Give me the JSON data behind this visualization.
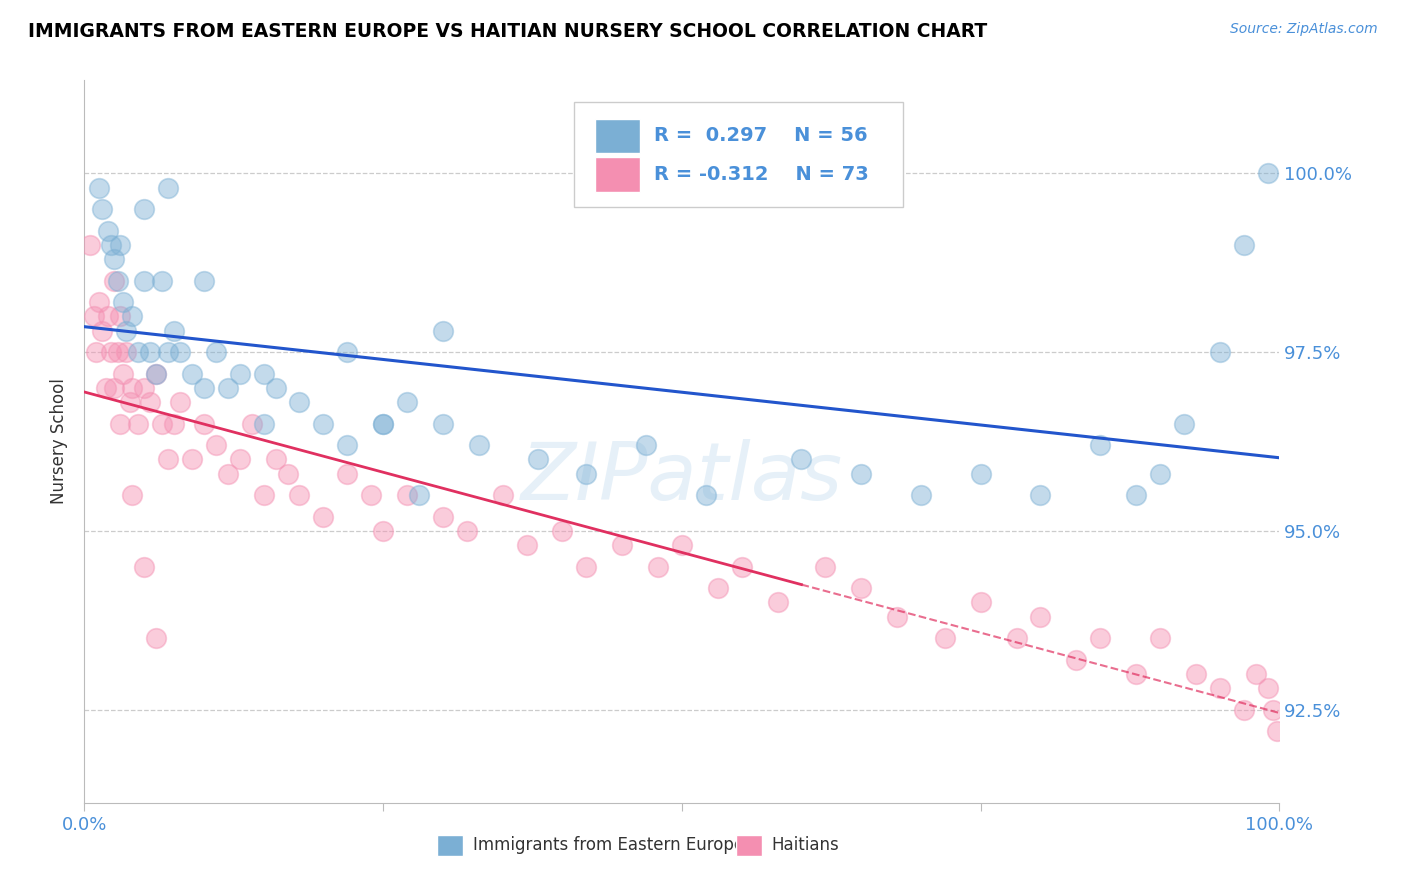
{
  "title": "IMMIGRANTS FROM EASTERN EUROPE VS HAITIAN NURSERY SCHOOL CORRELATION CHART",
  "source_text": "Source: ZipAtlas.com",
  "ylabel": "Nursery School",
  "legend_blue_label": "Immigrants from Eastern Europe",
  "legend_pink_label": "Haitians",
  "legend_blue_r": "R =  0.297",
  "legend_blue_n": "N = 56",
  "legend_pink_r": "R = -0.312",
  "legend_pink_n": "N = 73",
  "xlim": [
    0,
    100
  ],
  "ylim": [
    91.2,
    101.3
  ],
  "yticks": [
    92.5,
    95.0,
    97.5,
    100.0
  ],
  "ytick_labels": [
    "92.5%",
    "95.0%",
    "97.5%",
    "100.0%"
  ],
  "blue_color": "#7bafd4",
  "pink_color": "#f48fb1",
  "blue_line_color": "#2255cc",
  "pink_line_color": "#e03060",
  "axis_label_color": "#4a90d9",
  "watermark": "ZIPatlas",
  "blue_scatter_x": [
    1.2,
    1.5,
    2.0,
    2.2,
    2.5,
    2.8,
    3.0,
    3.2,
    3.5,
    4.0,
    4.5,
    5.0,
    5.5,
    6.0,
    6.5,
    7.0,
    7.5,
    8.0,
    9.0,
    10.0,
    11.0,
    12.0,
    13.0,
    15.0,
    16.0,
    18.0,
    20.0,
    22.0,
    25.0,
    27.0,
    30.0,
    33.0,
    38.0,
    42.0,
    47.0,
    52.0,
    60.0,
    65.0,
    70.0,
    75.0,
    80.0,
    85.0,
    88.0,
    90.0,
    92.0,
    95.0,
    97.0,
    99.0,
    22.0,
    25.0,
    28.0,
    30.0,
    5.0,
    7.0,
    10.0,
    15.0
  ],
  "blue_scatter_y": [
    99.8,
    99.5,
    99.2,
    99.0,
    98.8,
    98.5,
    99.0,
    98.2,
    97.8,
    98.0,
    97.5,
    98.5,
    97.5,
    97.2,
    98.5,
    97.5,
    97.8,
    97.5,
    97.2,
    97.0,
    97.5,
    97.0,
    97.2,
    96.5,
    97.0,
    96.8,
    96.5,
    96.2,
    96.5,
    96.8,
    96.5,
    96.2,
    96.0,
    95.8,
    96.2,
    95.5,
    96.0,
    95.8,
    95.5,
    95.8,
    95.5,
    96.2,
    95.5,
    95.8,
    96.5,
    97.5,
    99.0,
    100.0,
    97.5,
    96.5,
    95.5,
    97.8,
    99.5,
    99.8,
    98.5,
    97.2
  ],
  "pink_scatter_x": [
    0.5,
    0.8,
    1.0,
    1.2,
    1.5,
    1.8,
    2.0,
    2.2,
    2.5,
    2.8,
    3.0,
    3.2,
    3.5,
    3.8,
    4.0,
    4.5,
    5.0,
    5.5,
    6.0,
    6.5,
    7.0,
    7.5,
    8.0,
    9.0,
    10.0,
    11.0,
    12.0,
    13.0,
    14.0,
    15.0,
    16.0,
    17.0,
    18.0,
    20.0,
    22.0,
    24.0,
    25.0,
    27.0,
    30.0,
    32.0,
    35.0,
    37.0,
    40.0,
    42.0,
    45.0,
    48.0,
    50.0,
    53.0,
    55.0,
    58.0,
    62.0,
    65.0,
    68.0,
    72.0,
    75.0,
    78.0,
    80.0,
    83.0,
    85.0,
    88.0,
    90.0,
    93.0,
    95.0,
    97.0,
    98.0,
    99.0,
    99.5,
    99.8,
    2.5,
    3.0,
    4.0,
    5.0,
    6.0
  ],
  "pink_scatter_y": [
    99.0,
    98.0,
    97.5,
    98.2,
    97.8,
    97.0,
    98.0,
    97.5,
    97.0,
    97.5,
    98.0,
    97.2,
    97.5,
    96.8,
    97.0,
    96.5,
    97.0,
    96.8,
    97.2,
    96.5,
    96.0,
    96.5,
    96.8,
    96.0,
    96.5,
    96.2,
    95.8,
    96.0,
    96.5,
    95.5,
    96.0,
    95.8,
    95.5,
    95.2,
    95.8,
    95.5,
    95.0,
    95.5,
    95.2,
    95.0,
    95.5,
    94.8,
    95.0,
    94.5,
    94.8,
    94.5,
    94.8,
    94.2,
    94.5,
    94.0,
    94.5,
    94.2,
    93.8,
    93.5,
    94.0,
    93.5,
    93.8,
    93.2,
    93.5,
    93.0,
    93.5,
    93.0,
    92.8,
    92.5,
    93.0,
    92.8,
    92.5,
    92.2,
    98.5,
    96.5,
    95.5,
    94.5,
    93.5
  ]
}
